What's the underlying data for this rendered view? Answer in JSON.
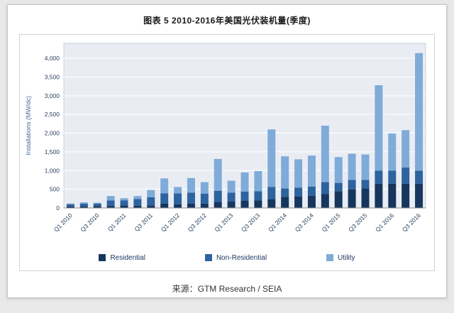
{
  "page": {
    "title": "图表 5  2010-2016年美国光伏装机量(季度)",
    "source": "来源：GTM Research / SEIA"
  },
  "colors": {
    "residential": "#17365d",
    "non_residential": "#2d639e",
    "utility": "#7fabd8",
    "plot_background": "#e9edf3",
    "gridline": "#ffffff",
    "axis_text": "#243f60",
    "axis_title": "#4a6b9b",
    "axis_line": "#8c8c8c"
  },
  "chart_data": {
    "type": "bar",
    "stacked": true,
    "title": "图表 5  2010-2016年美国光伏装机量(季度)",
    "xlabel": "",
    "ylabel": "Installations (MW/dc)",
    "ylim": [
      0,
      4400
    ],
    "yticks": [
      0,
      500,
      1000,
      1500,
      2000,
      2500,
      3000,
      3500,
      4000
    ],
    "grid": true,
    "legend_position": "bottom",
    "x_labels_shown_every": 2,
    "categories": [
      "Q1 2010",
      "Q2 2010",
      "Q3 2010",
      "Q4 2010",
      "Q1 2011",
      "Q2 2011",
      "Q3 2011",
      "Q4 2011",
      "Q1 2012",
      "Q2 2012",
      "Q3 2012",
      "Q4 2012",
      "Q1 2013",
      "Q2 2013",
      "Q3 2013",
      "Q4 2013",
      "Q1 2014",
      "Q2 2014",
      "Q3 2014",
      "Q4 2014",
      "Q1 2015",
      "Q2 2015",
      "Q3 2015",
      "Q4 2015",
      "Q1 2016",
      "Q2 2016",
      "Q3 2016"
    ],
    "series": [
      {
        "name": "Residential",
        "color": "#17365d",
        "values": [
          40,
          45,
          50,
          60,
          70,
          60,
          70,
          120,
          100,
          120,
          120,
          160,
          170,
          190,
          200,
          240,
          300,
          310,
          330,
          370,
          450,
          500,
          520,
          650,
          650,
          650,
          650
        ]
      },
      {
        "name": "Non-Residential",
        "color": "#2d639e",
        "values": [
          60,
          70,
          65,
          140,
          135,
          180,
          215,
          270,
          290,
          290,
          260,
          300,
          240,
          250,
          245,
          320,
          220,
          230,
          240,
          320,
          220,
          250,
          230,
          350,
          350,
          430,
          350
        ]
      },
      {
        "name": "Utility",
        "color": "#7fabd8",
        "values": [
          20,
          35,
          25,
          120,
          55,
          80,
          195,
          400,
          170,
          390,
          310,
          850,
          320,
          510,
          540,
          1540,
          860,
          760,
          830,
          1510,
          690,
          700,
          680,
          2280,
          990,
          1000,
          3140
        ]
      }
    ]
  }
}
